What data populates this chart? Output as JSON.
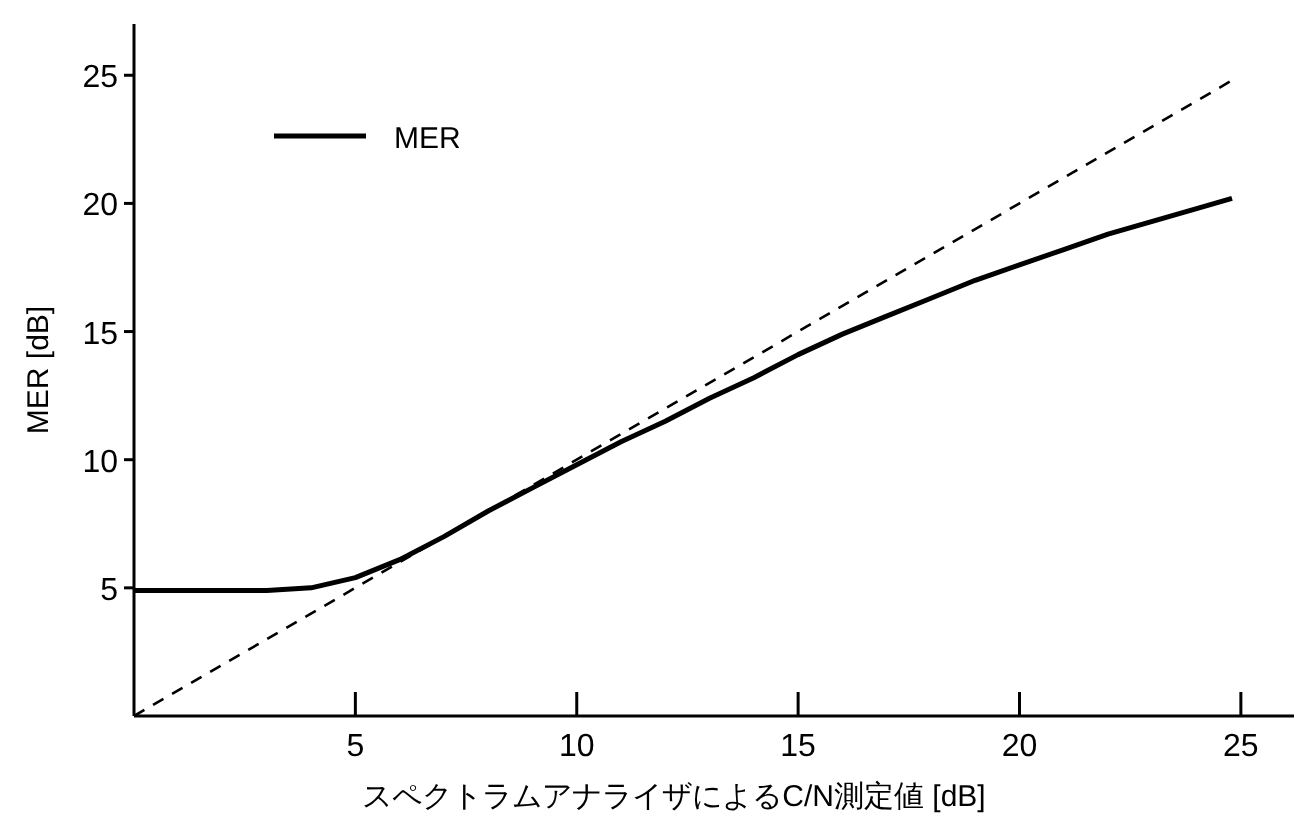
{
  "chart_data": {
    "type": "line",
    "xlabel": "スペクトラムアナライザによるC/N測定値 [dB]",
    "ylabel": "MER [dB]",
    "xlim": [
      0,
      26.2
    ],
    "ylim": [
      0,
      27
    ],
    "xticks": [
      5,
      10,
      15,
      20,
      25
    ],
    "yticks": [
      5,
      10,
      15,
      20,
      25
    ],
    "grid": false,
    "legend": "top left",
    "line_style": "solid",
    "marker": "none",
    "series": [
      {
        "name": "MER",
        "color": "#000000",
        "x": [
          0,
          1,
          2,
          3,
          4,
          5,
          6,
          7,
          8,
          9,
          10,
          11,
          12,
          13,
          14,
          15,
          16,
          17,
          18,
          19,
          20,
          21,
          22,
          23,
          24,
          24.8
        ],
        "values": [
          4.9,
          4.9,
          4.9,
          4.9,
          5.0,
          5.4,
          6.1,
          7.0,
          8.0,
          8.9,
          9.8,
          10.7,
          11.5,
          12.4,
          13.2,
          14.1,
          14.9,
          15.6,
          16.3,
          17.0,
          17.6,
          18.2,
          18.8,
          19.3,
          19.8,
          20.2
        ]
      },
      {
        "color": "#000000",
        "line_style": "dashed",
        "x": [
          0,
          24.8
        ],
        "values": [
          0,
          24.8
        ]
      }
    ]
  }
}
